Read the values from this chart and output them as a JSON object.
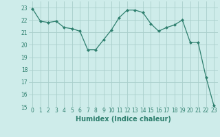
{
  "x": [
    0,
    1,
    2,
    3,
    4,
    5,
    6,
    7,
    8,
    9,
    10,
    11,
    12,
    13,
    14,
    15,
    16,
    17,
    18,
    19,
    20,
    21,
    22,
    23
  ],
  "y": [
    22.9,
    21.9,
    21.8,
    21.9,
    21.4,
    21.3,
    21.1,
    19.6,
    19.6,
    20.4,
    21.2,
    22.2,
    22.8,
    22.8,
    22.6,
    21.7,
    21.1,
    21.4,
    21.6,
    22.0,
    20.2,
    20.2,
    17.4,
    15.1
  ],
  "line_color": "#2e7f6e",
  "marker": "D",
  "marker_size": 2,
  "bg_color": "#ceecea",
  "grid_color": "#aacfcc",
  "xlabel": "Humidex (Indice chaleur)",
  "xlim": [
    -0.5,
    23.5
  ],
  "ylim": [
    15,
    23.5
  ],
  "yticks": [
    15,
    16,
    17,
    18,
    19,
    20,
    21,
    22,
    23
  ],
  "xticks": [
    0,
    1,
    2,
    3,
    4,
    5,
    6,
    7,
    8,
    9,
    10,
    11,
    12,
    13,
    14,
    15,
    16,
    17,
    18,
    19,
    20,
    21,
    22,
    23
  ],
  "tick_fontsize": 5.5,
  "xlabel_fontsize": 7,
  "tick_color": "#2e7f6e"
}
